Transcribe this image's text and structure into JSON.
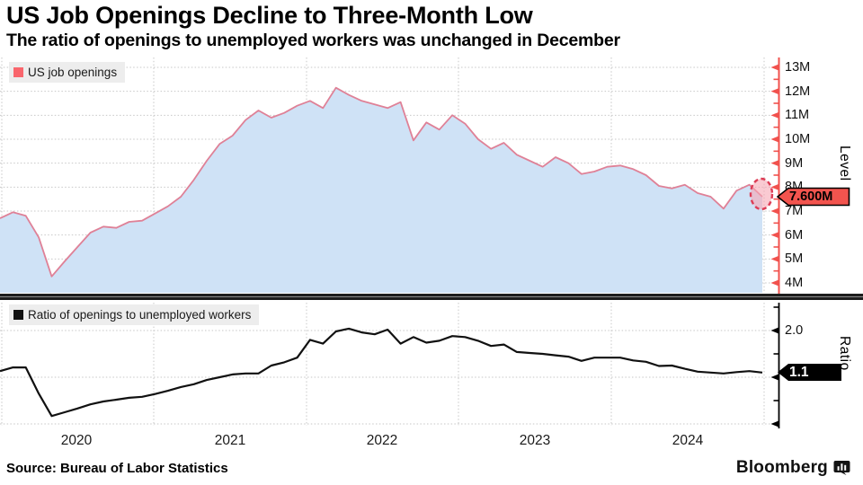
{
  "header": {
    "title": "US Job Openings Decline to Three-Month Low",
    "subtitle": "The ratio of openings to unemployed workers was unchanged in December"
  },
  "panels": {
    "top": {
      "legend": "US job openings",
      "axis_caption": "Level",
      "badge": "7.600M",
      "tick_labels": [
        "13M",
        "12M",
        "11M",
        "10M",
        "9M",
        "8M",
        "7M",
        "6M",
        "5M",
        "4M"
      ]
    },
    "bottom": {
      "legend": "Ratio of openings to unemployed workers",
      "axis_caption": "Ratio",
      "badge": "1.1",
      "tick_labels": [
        "2.0"
      ]
    }
  },
  "x_axis": {
    "year_labels": [
      "2020",
      "2021",
      "2022",
      "2023",
      "2024"
    ]
  },
  "footer": {
    "source": "Source: Bureau of Labor Statistics",
    "logo": "Bloomberg"
  },
  "colors": {
    "accent_red": "#f2544e",
    "axis_red": "#f1514d",
    "area_line": "#df8197",
    "area_fill": "#cfe2f6",
    "ellipse_stroke": "#dd3c55",
    "ellipse_fill": "rgba(246,166,180,0.60)",
    "ratio_line": "#111111",
    "badge_ratio_bg": "#000000",
    "grid": "#c7c7c7",
    "legend_bg": "#ededed",
    "legend_swatch_red": "#f9666d",
    "legend_swatch_black": "#111111"
  },
  "chart_data": [
    {
      "type": "area",
      "title": "US job openings",
      "ylabel": "Level",
      "unit": "millions",
      "ylim": [
        4,
        13.4
      ],
      "y_ticks": [
        4,
        5,
        6,
        7,
        8,
        9,
        10,
        11,
        12,
        13
      ],
      "x_years": [
        "2020",
        "2021",
        "2022",
        "2023",
        "2024"
      ],
      "frequency": "monthly",
      "last_value_label": "7.600M",
      "annotation": "dashed circle highlight on final data point",
      "values": [
        6.7,
        6.95,
        6.8,
        5.9,
        4.27,
        4.9,
        5.5,
        6.1,
        6.35,
        6.3,
        6.55,
        6.6,
        6.9,
        7.2,
        7.6,
        8.3,
        9.1,
        9.8,
        10.15,
        10.8,
        11.2,
        10.9,
        11.1,
        11.4,
        11.6,
        11.3,
        12.15,
        11.85,
        11.6,
        11.45,
        11.3,
        11.55,
        9.95,
        10.7,
        10.4,
        11.0,
        10.65,
        10.0,
        9.6,
        9.85,
        9.35,
        9.1,
        8.85,
        9.25,
        9.0,
        8.55,
        8.65,
        8.85,
        8.9,
        8.75,
        8.5,
        8.05,
        7.95,
        8.1,
        7.75,
        7.6,
        7.1,
        7.85,
        8.1,
        7.6
      ]
    },
    {
      "type": "line",
      "title": "Ratio of openings to unemployed workers",
      "ylabel": "Ratio",
      "ylim": [
        0,
        2.6
      ],
      "y_ticks": [
        0.0,
        0.5,
        1.0,
        1.5,
        2.0,
        2.5
      ],
      "gridline_values": [
        0.0,
        1.0,
        2.0
      ],
      "x_years": [
        "2020",
        "2021",
        "2022",
        "2023",
        "2024"
      ],
      "frequency": "monthly",
      "last_value_label": "1.1",
      "values": [
        1.13,
        1.21,
        1.21,
        0.65,
        0.17,
        0.25,
        0.33,
        0.42,
        0.48,
        0.52,
        0.56,
        0.58,
        0.64,
        0.71,
        0.79,
        0.85,
        0.94,
        1.0,
        1.06,
        1.08,
        1.08,
        1.25,
        1.32,
        1.42,
        1.8,
        1.72,
        1.98,
        2.04,
        1.96,
        1.92,
        2.02,
        1.72,
        1.86,
        1.74,
        1.78,
        1.88,
        1.86,
        1.78,
        1.67,
        1.7,
        1.54,
        1.52,
        1.5,
        1.47,
        1.44,
        1.35,
        1.42,
        1.42,
        1.42,
        1.36,
        1.33,
        1.24,
        1.25,
        1.18,
        1.12,
        1.1,
        1.08,
        1.11,
        1.13,
        1.1
      ]
    }
  ]
}
